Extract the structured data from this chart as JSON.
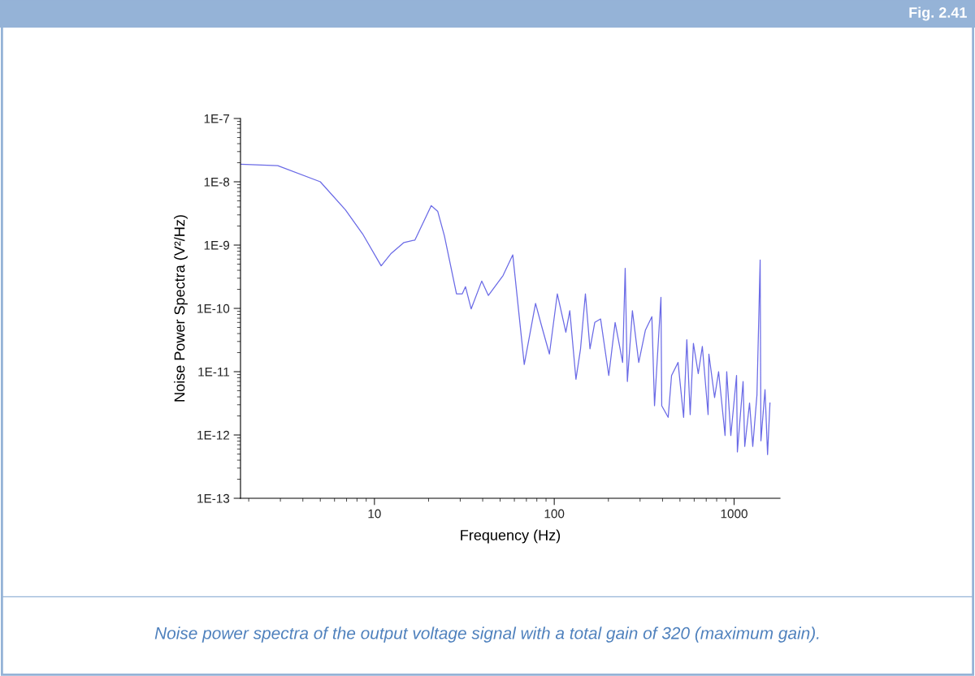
{
  "chart_data": {
    "type": "line",
    "xlabel": "Frequency (Hz)",
    "ylabel": "Noise Power Spectra (V²/Hz)",
    "annotations": [
      "Fig. 2.41",
      "Noise power spectra of the output voltage signal with a total gain of 320 (maximum gain)."
    ],
    "log": "xy",
    "grid": false,
    "marker": "none",
    "line_style": "solid",
    "xlim": [
      1.8,
      1800
    ],
    "xticks": [
      10,
      100,
      1000
    ],
    "ylim": [
      1e-13,
      1e-07
    ],
    "yticks": [
      {
        "value": 1e-13,
        "label": "1E-13"
      },
      {
        "value": 1e-12,
        "label": "1E-12"
      },
      {
        "value": 1e-11,
        "label": "1E-11"
      },
      {
        "value": 1e-10,
        "label": "1E-10"
      },
      {
        "value": 1e-09,
        "label": "1E-9"
      },
      {
        "value": 1e-08,
        "label": "1E-8"
      },
      {
        "value": 1e-07,
        "label": "1E-7"
      }
    ],
    "series": [
      {
        "color": "#6a6ae6",
        "x": [
          1.8,
          2.9,
          5.0,
          6.9,
          8.6,
          10.9,
          12.4,
          14.6,
          16.8,
          20.7,
          22.5,
          24.5,
          28.6,
          30.8,
          32.1,
          34.5,
          39.5,
          43.0,
          51.9,
          58.8,
          68.1,
          78.7,
          84.7,
          94,
          104,
          116,
          122,
          132,
          140,
          149,
          158,
          168,
          181,
          201,
          218,
          240,
          248,
          255,
          272,
          295,
          321,
          349,
          361,
          392,
          396,
          430,
          449,
          488,
          524,
          546,
          570,
          594,
          632,
          666,
          717,
          724,
          779,
          820,
          891,
          910,
          959,
          1032,
          1043,
          1122,
          1146,
          1219,
          1270,
          1340,
          1396,
          1410,
          1486,
          1535,
          1583
        ],
        "values": [
          1.9e-08,
          1.8e-08,
          1e-08,
          3.6e-09,
          1.5e-09,
          4.7e-10,
          7.4e-10,
          1.1e-09,
          1.2e-09,
          4.2e-09,
          3.4e-09,
          1.4e-09,
          1.7e-10,
          1.7e-10,
          2.2e-10,
          9.8e-11,
          2.7e-10,
          1.6e-10,
          3.3e-10,
          7e-10,
          1.3e-11,
          1.2e-10,
          5.5e-11,
          1.9e-11,
          1.7e-10,
          4.2e-11,
          9.2e-11,
          7.6e-12,
          2.3e-11,
          1.7e-10,
          2.3e-11,
          6e-11,
          6.8e-11,
          8.7e-12,
          6e-11,
          1.4e-11,
          4.3e-10,
          7e-12,
          9.2e-11,
          1.4e-11,
          4.5e-11,
          7.4e-11,
          2.9e-12,
          1.5e-10,
          2.9e-12,
          1.9e-12,
          8.7e-12,
          1.4e-11,
          1.9e-12,
          3.2e-11,
          2.1e-12,
          2.8e-11,
          9.3e-12,
          2.5e-11,
          2.1e-12,
          1.9e-11,
          3.9e-12,
          1e-11,
          9.8e-13,
          1e-11,
          9.8e-13,
          8.7e-12,
          5.4e-13,
          7e-12,
          6.6e-13,
          3.2e-12,
          6.6e-13,
          4.3e-12,
          5.8e-10,
          8.1e-13,
          5.2e-12,
          4.9e-13,
          3.2e-12
        ]
      }
    ]
  }
}
